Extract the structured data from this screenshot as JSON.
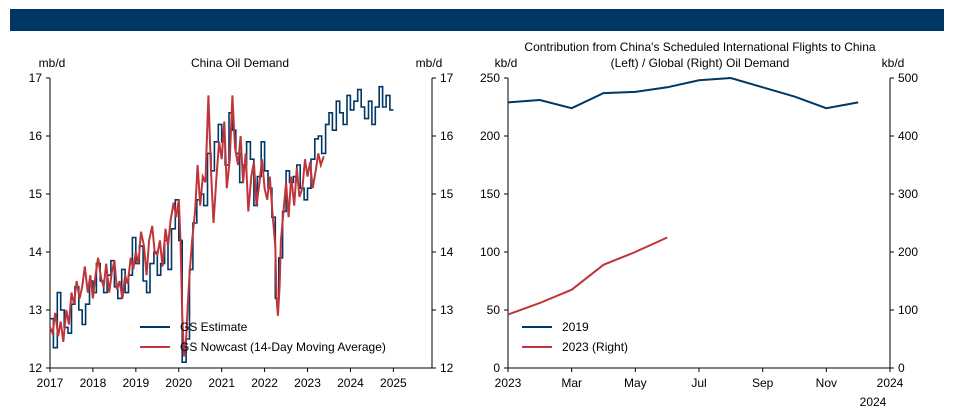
{
  "banner": {
    "color": "#003764"
  },
  "colors": {
    "navy": "#003764",
    "red": "#c0353a"
  },
  "chart_data": [
    {
      "type": "line",
      "title": "China Oil Demand",
      "ylabel_left": "mb/d",
      "ylabel_right": "mb/d",
      "ylim": [
        12,
        17
      ],
      "xlim": [
        2017,
        2025.9
      ],
      "yticks": [
        "12",
        "13",
        "14",
        "15",
        "16",
        "17"
      ],
      "xticks": [
        "2017",
        "2018",
        "2019",
        "2020",
        "2021",
        "2022",
        "2023",
        "2024",
        "2025"
      ],
      "series": [
        {
          "name": "GS Estimate",
          "color": "#003764",
          "step": true,
          "x": [
            2017.0,
            2017.08,
            2017.17,
            2017.25,
            2017.33,
            2017.42,
            2017.5,
            2017.58,
            2017.67,
            2017.75,
            2017.83,
            2017.92,
            2018.0,
            2018.08,
            2018.17,
            2018.25,
            2018.33,
            2018.42,
            2018.5,
            2018.58,
            2018.67,
            2018.75,
            2018.83,
            2018.92,
            2019.0,
            2019.08,
            2019.17,
            2019.25,
            2019.33,
            2019.42,
            2019.5,
            2019.58,
            2019.67,
            2019.75,
            2019.83,
            2019.92,
            2020.0,
            2020.08,
            2020.17,
            2020.25,
            2020.33,
            2020.42,
            2020.5,
            2020.58,
            2020.67,
            2020.75,
            2020.83,
            2020.92,
            2021.0,
            2021.08,
            2021.17,
            2021.25,
            2021.33,
            2021.42,
            2021.5,
            2021.58,
            2021.67,
            2021.75,
            2021.83,
            2021.92,
            2022.0,
            2022.08,
            2022.17,
            2022.25,
            2022.33,
            2022.42,
            2022.5,
            2022.58,
            2022.67,
            2022.75,
            2022.83,
            2022.92,
            2023.0,
            2023.08,
            2023.17,
            2023.25,
            2023.33,
            2023.42,
            2023.5,
            2023.58,
            2023.67,
            2023.75,
            2023.83,
            2023.92,
            2024.0,
            2024.08,
            2024.17,
            2024.25,
            2024.33,
            2024.42,
            2024.5,
            2024.58,
            2024.67,
            2024.75,
            2024.83,
            2024.92
          ],
          "y": [
            12.85,
            12.35,
            13.3,
            13.0,
            12.7,
            12.6,
            13.1,
            13.4,
            13.0,
            12.75,
            13.1,
            13.5,
            13.3,
            13.8,
            13.5,
            13.3,
            13.6,
            13.85,
            13.4,
            13.2,
            13.7,
            13.3,
            13.6,
            14.25,
            13.8,
            14.1,
            13.5,
            13.3,
            13.8,
            14.0,
            13.6,
            13.8,
            14.2,
            13.7,
            14.4,
            14.9,
            14.2,
            12.1,
            12.5,
            13.7,
            14.5,
            14.9,
            15.0,
            14.8,
            15.7,
            15.4,
            15.9,
            16.2,
            15.9,
            15.5,
            16.4,
            16.1,
            15.7,
            15.2,
            15.5,
            15.9,
            15.6,
            14.8,
            15.3,
            15.9,
            15.4,
            15.1,
            14.6,
            13.2,
            13.9,
            14.7,
            15.4,
            15.2,
            15.3,
            15.5,
            15.1,
            14.9,
            15.1,
            15.6,
            15.95,
            16.0,
            15.7,
            16.2,
            16.4,
            16.1,
            16.6,
            16.4,
            16.2,
            16.7,
            16.45,
            16.6,
            16.8,
            16.5,
            16.3,
            16.6,
            16.2,
            16.5,
            16.85,
            16.5,
            16.7,
            16.45
          ]
        },
        {
          "name": "GS Nowcast (14-Day Moving Average)",
          "color": "#c0353a",
          "step": false,
          "x": [
            2017.0,
            2017.06,
            2017.12,
            2017.19,
            2017.25,
            2017.31,
            2017.38,
            2017.44,
            2017.5,
            2017.56,
            2017.62,
            2017.69,
            2017.75,
            2017.81,
            2017.88,
            2017.94,
            2018.0,
            2018.06,
            2018.12,
            2018.19,
            2018.25,
            2018.31,
            2018.38,
            2018.44,
            2018.5,
            2018.56,
            2018.62,
            2018.69,
            2018.75,
            2018.81,
            2018.88,
            2018.94,
            2019.0,
            2019.06,
            2019.12,
            2019.19,
            2019.25,
            2019.31,
            2019.38,
            2019.44,
            2019.5,
            2019.56,
            2019.62,
            2019.69,
            2019.75,
            2019.81,
            2019.88,
            2019.94,
            2020.0,
            2020.04,
            2020.08,
            2020.12,
            2020.17,
            2020.21,
            2020.25,
            2020.31,
            2020.38,
            2020.44,
            2020.5,
            2020.56,
            2020.62,
            2020.69,
            2020.75,
            2020.81,
            2020.88,
            2020.94,
            2021.0,
            2021.06,
            2021.12,
            2021.19,
            2021.25,
            2021.31,
            2021.38,
            2021.44,
            2021.5,
            2021.56,
            2021.62,
            2021.69,
            2021.75,
            2021.81,
            2021.88,
            2021.94,
            2022.0,
            2022.06,
            2022.12,
            2022.19,
            2022.25,
            2022.28,
            2022.31,
            2022.35,
            2022.38,
            2022.44,
            2022.5,
            2022.56,
            2022.62,
            2022.69,
            2022.75,
            2022.81,
            2022.88,
            2022.94,
            2023.0,
            2023.06,
            2023.12,
            2023.19,
            2023.25,
            2023.31,
            2023.38
          ],
          "y": [
            12.7,
            12.6,
            12.95,
            12.55,
            12.8,
            12.45,
            13.0,
            12.75,
            13.3,
            13.1,
            13.5,
            13.2,
            13.4,
            13.75,
            13.3,
            13.6,
            13.2,
            13.6,
            13.9,
            13.55,
            13.4,
            13.8,
            13.3,
            13.65,
            13.85,
            13.35,
            13.5,
            13.2,
            13.6,
            13.45,
            13.9,
            13.7,
            14.0,
            13.8,
            14.35,
            14.1,
            13.6,
            14.2,
            14.45,
            14.0,
            13.95,
            14.2,
            13.75,
            14.4,
            14.1,
            14.55,
            14.85,
            14.6,
            14.9,
            14.2,
            12.95,
            12.2,
            12.5,
            13.1,
            13.6,
            14.2,
            14.7,
            15.5,
            14.8,
            15.3,
            15.2,
            16.7,
            15.4,
            14.5,
            15.3,
            15.9,
            15.6,
            16.25,
            15.1,
            15.6,
            16.7,
            15.8,
            15.5,
            16.0,
            15.2,
            15.7,
            14.7,
            15.3,
            15.55,
            14.8,
            15.2,
            15.6,
            15.1,
            14.9,
            15.3,
            14.6,
            14.1,
            13.2,
            12.9,
            13.4,
            14.2,
            14.7,
            15.2,
            14.6,
            15.3,
            14.8,
            15.45,
            14.95,
            15.1,
            15.6,
            15.3,
            15.55,
            15.1,
            15.4,
            15.7,
            15.5,
            15.65
          ]
        }
      ],
      "legend": [
        "GS Estimate",
        "GS Nowcast (14-Day Moving Average)"
      ],
      "legend_position": "bottom-right"
    },
    {
      "type": "line",
      "title_line1": "Contribution from China's Scheduled International Flights to China",
      "title_line2": "(Left) / Global (Right) Oil Demand",
      "ylabel_left": "kb/d",
      "ylabel_right": "kb/d",
      "ylim_left": [
        0,
        250
      ],
      "ylim_right": [
        0,
        500
      ],
      "yticks_left": [
        "0",
        "50",
        "100",
        "150",
        "200",
        "250"
      ],
      "yticks_right": [
        "0",
        "100",
        "200",
        "300",
        "400",
        "500"
      ],
      "xticks": [
        "2023",
        "Mar",
        "May",
        "Jul",
        "Sep",
        "Nov",
        "2024"
      ],
      "xtick_extra": "2024",
      "series": [
        {
          "name": "2019",
          "axis": "left",
          "color": "#003764",
          "x": [
            0,
            1,
            2,
            3,
            4,
            5,
            6,
            7,
            8,
            9,
            10,
            11
          ],
          "y": [
            229,
            231,
            224,
            237,
            238,
            242,
            248,
            250,
            242,
            234,
            224,
            229
          ]
        },
        {
          "name": "2023 (Right)",
          "axis": "right",
          "color": "#c0353a",
          "x": [
            0,
            1,
            2,
            3,
            4,
            5
          ],
          "y": [
            92,
            112,
            135,
            178,
            200,
            225
          ]
        }
      ],
      "legend": [
        "2019",
        "2023 (Right)"
      ],
      "legend_position": "bottom-left"
    }
  ]
}
